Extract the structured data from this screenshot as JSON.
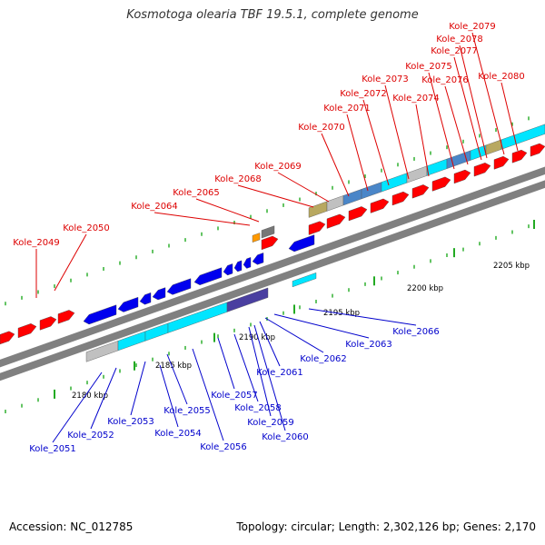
{
  "title": "Kosmotoga olearia TBF 19.5.1, complete genome",
  "footer": {
    "accession": "Accession: NC_012785",
    "summary": "Topology: circular; Length: 2,302,126 bp; Genes: 2,170"
  },
  "colors": {
    "forward_label": "#dd0000",
    "reverse_label": "#0000cc",
    "forward_gene": "#ff0000",
    "reverse_gene": "#0000ee",
    "backbone": "#808080",
    "tick": "#22aa22",
    "cyan": "#00e5ff",
    "steelblue": "#4a86c8",
    "purple": "#4a3fa0",
    "olive": "#b8a860",
    "gray": "#c0c0c0"
  },
  "scale": {
    "ticks": [
      "2180 kbp",
      "2185 kbp",
      "2190 kbp",
      "2195 kbp",
      "2200 kbp",
      "2205 kbp"
    ]
  },
  "forward_labels": [
    "Kole_2049",
    "Kole_2050",
    "Kole_2064",
    "Kole_2065",
    "Kole_2068",
    "Kole_2069",
    "Kole_2070",
    "Kole_2071",
    "Kole_2072",
    "Kole_2073",
    "Kole_2074",
    "Kole_2075",
    "Kole_2076",
    "Kole_2077",
    "Kole_2078",
    "Kole_2079",
    "Kole_2080"
  ],
  "reverse_labels": [
    "Kole_2051",
    "Kole_2052",
    "Kole_2053",
    "Kole_2054",
    "Kole_2055",
    "Kole_2056",
    "Kole_2057",
    "Kole_2058",
    "Kole_2059",
    "Kole_2060",
    "Kole_2061",
    "Kole_2062",
    "Kole_2063",
    "Kole_2066"
  ]
}
